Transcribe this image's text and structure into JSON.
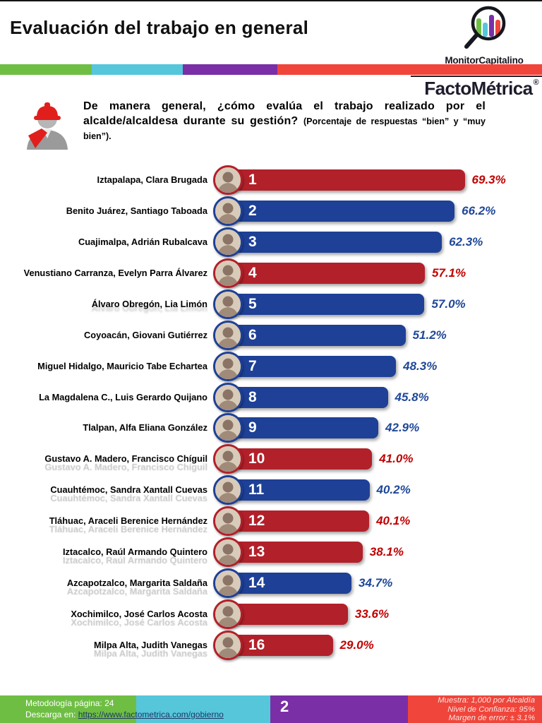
{
  "header": {
    "title": "Evaluación del trabajo en general",
    "brand": "MonitorCapitalino",
    "logo": "FactoMétrica",
    "registered": "®"
  },
  "question": {
    "main": "De manera general, ¿cómo evalúa el trabajo realizado por el alcalde/alcaldesa durante su gestión? ",
    "note": "(Porcentaje de respuestas “bien” y “muy bien”)."
  },
  "chart_data": {
    "type": "bar",
    "orientation": "horizontal",
    "title": "Evaluación del trabajo en general",
    "value_unit": "percent",
    "value_range": [
      0,
      100
    ],
    "rows": [
      {
        "rank": "1",
        "label": "Iztapalapa, Clara Brugada",
        "value": 69.3,
        "display": "69.3%",
        "color": "red",
        "ghost": "none"
      },
      {
        "rank": "2",
        "label": "Benito Juárez, Santiago Taboada",
        "value": 66.2,
        "display": "66.2%",
        "color": "blue",
        "ghost": "none"
      },
      {
        "rank": "3",
        "label": "Cuajimalpa, Adrián Rubalcava",
        "value": 62.3,
        "display": "62.3%",
        "color": "blue",
        "ghost": "none"
      },
      {
        "rank": "4",
        "label": "Venustiano Carranza, Evelyn Parra Álvarez",
        "value": 57.1,
        "display": "57.1%",
        "color": "red",
        "ghost": "none"
      },
      {
        "rank": "5",
        "label": "Álvaro Obregón, Lia Limón",
        "value": 57.0,
        "display": "57.0%",
        "color": "blue",
        "ghost": "soft"
      },
      {
        "rank": "6",
        "label": "Coyoacán, Giovani Gutiérrez",
        "value": 51.2,
        "display": "51.2%",
        "color": "blue",
        "ghost": "none"
      },
      {
        "rank": "7",
        "label": "Miguel Hidalgo, Mauricio Tabe Echartea",
        "value": 48.3,
        "display": "48.3%",
        "color": "blue",
        "ghost": "none"
      },
      {
        "rank": "8",
        "label": "La Magdalena C., Luis Gerardo Quijano",
        "value": 45.8,
        "display": "45.8%",
        "color": "blue",
        "ghost": "none"
      },
      {
        "rank": "9",
        "label": "Tlalpan, Alfa Eliana González",
        "value": 42.9,
        "display": "42.9%",
        "color": "blue",
        "ghost": "none"
      },
      {
        "rank": "10",
        "label": "Gustavo A. Madero, Francisco Chíguil",
        "value": 41.0,
        "display": "41.0%",
        "color": "red",
        "ghost": "strong"
      },
      {
        "rank": "11",
        "label": "Cuauhtémoc, Sandra Xantall Cuevas",
        "value": 40.2,
        "display": "40.2%",
        "color": "blue",
        "ghost": "strong"
      },
      {
        "rank": "12",
        "label": "Tláhuac, Araceli Berenice Hernández",
        "value": 40.1,
        "display": "40.1%",
        "color": "red",
        "ghost": "strong"
      },
      {
        "rank": "13",
        "label": "Iztacalco, Raúl Armando Quintero",
        "value": 38.1,
        "display": "38.1%",
        "color": "red",
        "ghost": "strong"
      },
      {
        "rank": "14",
        "label": "Azcapotzalco, Margarita Saldaña",
        "value": 34.7,
        "display": "34.7%",
        "color": "blue",
        "ghost": "strong"
      },
      {
        "rank": "",
        "label": "Xochimilco, José Carlos Acosta",
        "value": 33.6,
        "display": "33.6%",
        "color": "red",
        "ghost": "strong"
      },
      {
        "rank": "16",
        "label": "Milpa Alta, Judith Vanegas",
        "value": 29.0,
        "display": "29.0%",
        "color": "red",
        "ghost": "strong"
      }
    ],
    "colors": {
      "bar_red": "#B2202A",
      "bar_blue": "#1E4096",
      "pct_red": "#C00000",
      "pct_blue": "#1F4798"
    }
  },
  "stripe_colors": [
    "#6FBE44",
    "#56C6DB",
    "#7A2FA6",
    "#F0453B"
  ],
  "footer": {
    "methodology": "Metodología página: 24",
    "download_prefix": "Descarga en: ",
    "download_url": "https://www.factometrica.com/gobierno",
    "page_number": "2",
    "stats": [
      "Muestra:  1,000 por Alcaldía",
      "Nivel de Confianza: 95%",
      "Margen de error: ± 3.1%"
    ],
    "block_colors": [
      "#6FBE44",
      "#56C6DB",
      "#7A2FA6",
      "#F0453B"
    ]
  }
}
